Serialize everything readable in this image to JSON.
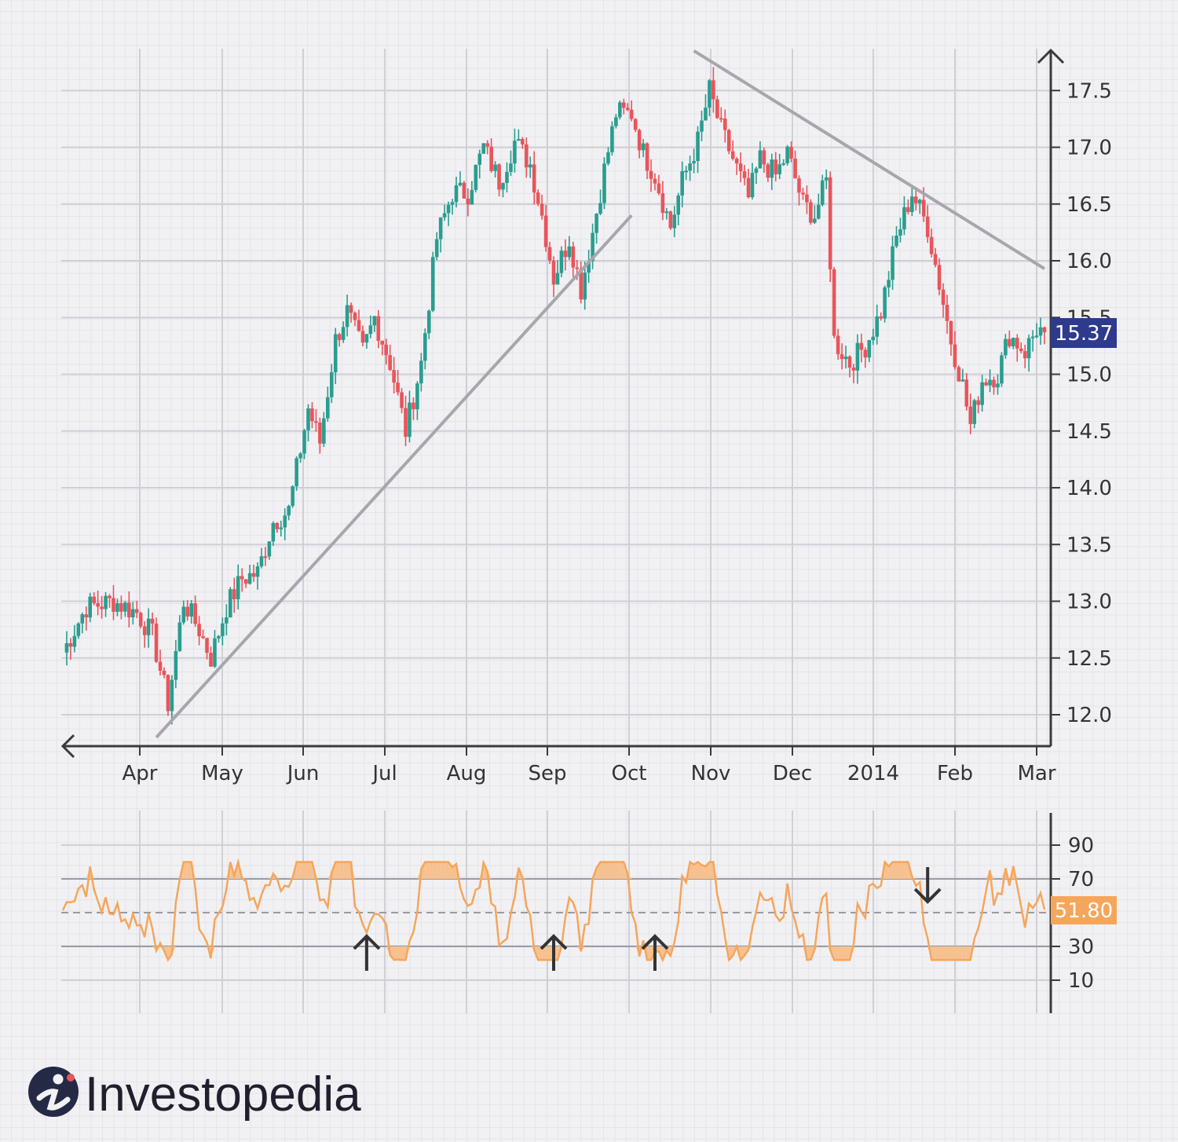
{
  "brand": {
    "name": "Investopedia",
    "logo_icon": "investopedia-i-logo-icon"
  },
  "colors": {
    "background": "#f1f1f4",
    "up_candle": "#2a9d8f",
    "down_candle": "#e8555a",
    "trendline": "#a6a6ad",
    "axis": "#3a3a3a",
    "rsi_line": "#f5a65b",
    "price_badge": "#2e3a8c",
    "rsi_badge": "#f5a65b"
  },
  "chart_data": [
    {
      "type": "candlestick",
      "title": "",
      "x_ticks": [
        "Apr",
        "May",
        "Jun",
        "Jul",
        "Aug",
        "Sep",
        "Oct",
        "Nov",
        "Dec",
        "2014",
        "Feb",
        "Mar"
      ],
      "y_ticks": [
        "12.0",
        "12.5",
        "13.0",
        "13.5",
        "14.0",
        "14.5",
        "15.0",
        "15.5",
        "16.0",
        "16.5",
        "17.0",
        "17.5"
      ],
      "ylim": [
        11.75,
        17.95
      ],
      "last_price_label": "15.37",
      "grid": true,
      "close_series_anchors": [
        {
          "d": 0,
          "v": 12.55
        },
        {
          "d": 6,
          "v": 12.95
        },
        {
          "d": 13,
          "v": 13.0
        },
        {
          "d": 19,
          "v": 12.9
        },
        {
          "d": 23,
          "v": 12.7
        },
        {
          "d": 27,
          "v": 12.1
        },
        {
          "d": 31,
          "v": 13.0
        },
        {
          "d": 35,
          "v": 12.75
        },
        {
          "d": 38,
          "v": 12.5
        },
        {
          "d": 42,
          "v": 12.95
        },
        {
          "d": 46,
          "v": 13.2
        },
        {
          "d": 50,
          "v": 13.25
        },
        {
          "d": 54,
          "v": 13.7
        },
        {
          "d": 58,
          "v": 13.8
        },
        {
          "d": 63,
          "v": 14.7
        },
        {
          "d": 66,
          "v": 14.4
        },
        {
          "d": 70,
          "v": 15.3
        },
        {
          "d": 73,
          "v": 15.55
        },
        {
          "d": 77,
          "v": 15.2
        },
        {
          "d": 80,
          "v": 15.5
        },
        {
          "d": 84,
          "v": 15.1
        },
        {
          "d": 88,
          "v": 14.5
        },
        {
          "d": 92,
          "v": 15.1
        },
        {
          "d": 96,
          "v": 16.2
        },
        {
          "d": 100,
          "v": 16.6
        },
        {
          "d": 104,
          "v": 16.6
        },
        {
          "d": 108,
          "v": 17.0
        },
        {
          "d": 112,
          "v": 16.7
        },
        {
          "d": 116,
          "v": 17.05
        },
        {
          "d": 120,
          "v": 16.85
        },
        {
          "d": 123,
          "v": 16.4
        },
        {
          "d": 126,
          "v": 15.85
        },
        {
          "d": 130,
          "v": 16.2
        },
        {
          "d": 133,
          "v": 15.75
        },
        {
          "d": 136,
          "v": 16.25
        },
        {
          "d": 139,
          "v": 16.8
        },
        {
          "d": 142,
          "v": 17.3
        },
        {
          "d": 146,
          "v": 17.3
        },
        {
          "d": 149,
          "v": 16.95
        },
        {
          "d": 152,
          "v": 16.75
        },
        {
          "d": 156,
          "v": 16.3
        },
        {
          "d": 159,
          "v": 16.7
        },
        {
          "d": 163,
          "v": 17.05
        },
        {
          "d": 166,
          "v": 17.5
        },
        {
          "d": 169,
          "v": 17.15
        },
        {
          "d": 172,
          "v": 16.9
        },
        {
          "d": 176,
          "v": 16.55
        },
        {
          "d": 179,
          "v": 16.9
        },
        {
          "d": 183,
          "v": 16.75
        },
        {
          "d": 186,
          "v": 16.95
        },
        {
          "d": 190,
          "v": 16.5
        },
        {
          "d": 193,
          "v": 16.4
        },
        {
          "d": 196,
          "v": 16.7
        },
        {
          "d": 198,
          "v": 15.3
        },
        {
          "d": 202,
          "v": 15.1
        },
        {
          "d": 206,
          "v": 15.25
        },
        {
          "d": 210,
          "v": 15.55
        },
        {
          "d": 214,
          "v": 16.2
        },
        {
          "d": 218,
          "v": 16.6
        },
        {
          "d": 222,
          "v": 16.3
        },
        {
          "d": 225,
          "v": 15.8
        },
        {
          "d": 228,
          "v": 15.3
        },
        {
          "d": 231,
          "v": 14.9
        },
        {
          "d": 233,
          "v": 14.55
        },
        {
          "d": 236,
          "v": 14.95
        },
        {
          "d": 240,
          "v": 15.0
        },
        {
          "d": 243,
          "v": 15.35
        },
        {
          "d": 247,
          "v": 15.2
        },
        {
          "d": 250,
          "v": 15.4
        },
        {
          "d": 252,
          "v": 15.37
        }
      ],
      "trendlines": [
        {
          "from": {
            "d": 24,
            "v": 11.8
          },
          "to": {
            "d": 146,
            "v": 16.4
          }
        },
        {
          "from": {
            "d": 162,
            "v": 17.85
          },
          "to": {
            "d": 252,
            "v": 15.93
          }
        }
      ]
    },
    {
      "type": "line",
      "indicator": "oscillator",
      "y_ticks": [
        "10",
        "30",
        "70",
        "90"
      ],
      "ylim": [
        0,
        100
      ],
      "reference_lines": [
        30,
        50,
        70
      ],
      "last_value_label": "51.80",
      "signals": [
        {
          "d": 78,
          "direction": "up"
        },
        {
          "d": 126,
          "direction": "up"
        },
        {
          "d": 152,
          "direction": "up"
        },
        {
          "d": 222,
          "direction": "down"
        }
      ]
    }
  ]
}
